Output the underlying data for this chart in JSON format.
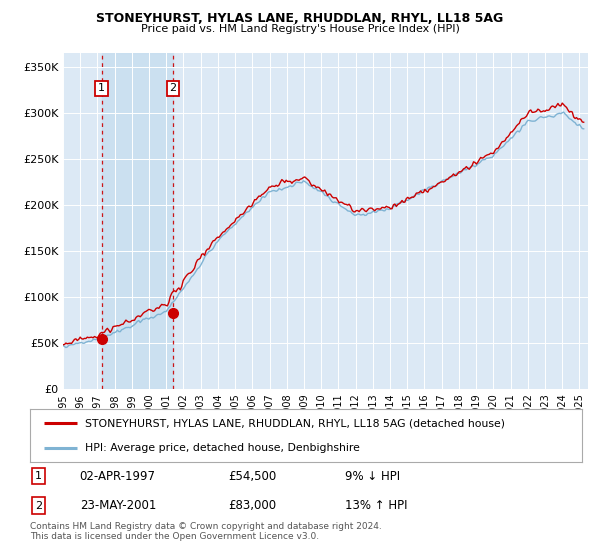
{
  "title": "STONEYHURST, HYLAS LANE, RHUDDLAN, RHYL, LL18 5AG",
  "subtitle": "Price paid vs. HM Land Registry's House Price Index (HPI)",
  "ylabel_ticks": [
    "£0",
    "£50K",
    "£100K",
    "£150K",
    "£200K",
    "£250K",
    "£300K",
    "£350K"
  ],
  "ytick_values": [
    0,
    50000,
    100000,
    150000,
    200000,
    250000,
    300000,
    350000
  ],
  "ylim": [
    0,
    365000
  ],
  "xlim_start": 1995.0,
  "xlim_end": 2025.5,
  "bg_color": "#dce9f5",
  "line1_color": "#cc0000",
  "line2_color": "#7fb3d3",
  "shade_color": "#c8dff0",
  "sale1_date_x": 1997.25,
  "sale1_price": 54500,
  "sale1_label": "1",
  "sale1_hpi_pct": "9% ↓ HPI",
  "sale1_date_str": "02-APR-1997",
  "sale2_date_x": 2001.39,
  "sale2_price": 83000,
  "sale2_label": "2",
  "sale2_hpi_pct": "13% ↑ HPI",
  "sale2_date_str": "23-MAY-2001",
  "legend1_text": "STONEYHURST, HYLAS LANE, RHUDDLAN, RHYL, LL18 5AG (detached house)",
  "legend2_text": "HPI: Average price, detached house, Denbighshire",
  "footer1": "Contains HM Land Registry data © Crown copyright and database right 2024.",
  "footer2": "This data is licensed under the Open Government Licence v3.0.",
  "xtick_years": [
    "1995",
    "1996",
    "1997",
    "1998",
    "1999",
    "2000",
    "2001",
    "2002",
    "2003",
    "2004",
    "2005",
    "2006",
    "2007",
    "2008",
    "2009",
    "2010",
    "2011",
    "2012",
    "2013",
    "2014",
    "2015",
    "2016",
    "2017",
    "2018",
    "2019",
    "2020",
    "2021",
    "2022",
    "2023",
    "2024",
    "2025"
  ]
}
